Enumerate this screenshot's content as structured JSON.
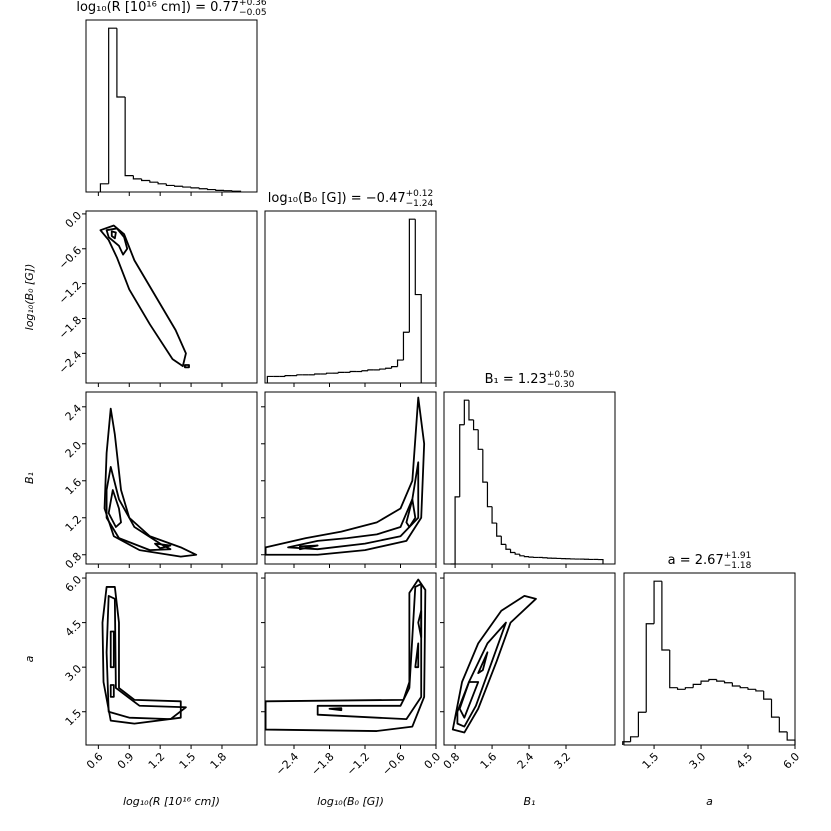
{
  "chart_data": {
    "type": "corner",
    "variables": [
      {
        "title": {
          "text": "log₁₀(R [10¹⁶ cm]) = 0.77",
          "upper": "+0.36",
          "lower": "−0.05"
        },
        "label": "log₁₀(R [10¹⁶ cm])",
        "xlim": [
          0.48,
          2.14
        ],
        "xticks": [
          0.6,
          0.9,
          1.2,
          1.5,
          1.8
        ],
        "hist_ylim": [
          0,
          105
        ],
        "bins": [
          0.62,
          0.7,
          0.78,
          0.86,
          0.94,
          1.02,
          1.1,
          1.18,
          1.26,
          1.34,
          1.42,
          1.5,
          1.58,
          1.66,
          1.74,
          1.82,
          1.9,
          1.98
        ],
        "counts": [
          5,
          100,
          58,
          10,
          8,
          7,
          6,
          5,
          4,
          3.5,
          3,
          2.5,
          2,
          1.5,
          1,
          0.8,
          0.5
        ]
      },
      {
        "title": {
          "text": "log₁₀(B₀ [G]) = −0.47",
          "upper": "+0.12",
          "lower": "−1.24"
        },
        "label": "log₁₀(B₀ [G])",
        "xlim": [
          -2.89,
          0.0
        ],
        "xticks": [
          {
            "value": -2.4,
            "label": "−2.4"
          },
          {
            "value": -1.8,
            "label": "−1.8"
          },
          {
            "value": -1.2,
            "label": "−1.2"
          },
          {
            "value": -0.6,
            "label": "−0.6"
          },
          {
            "value": 0,
            "label": "0.0"
          }
        ],
        "ylim": [
          -2.91,
          0.05
        ],
        "yticks": [
          {
            "value": 0,
            "label": "0.0"
          },
          {
            "value": -0.6,
            "label": "−0.6"
          },
          {
            "value": -1.2,
            "label": "−1.2"
          },
          {
            "value": -1.8,
            "label": "−1.8"
          },
          {
            "value": -2.4,
            "label": "−2.4"
          }
        ],
        "hist_ylim": [
          0,
          105
        ],
        "bins": [
          -2.85,
          -2.75,
          -2.65,
          -2.55,
          -2.45,
          -2.35,
          -2.25,
          -2.15,
          -2.05,
          -1.95,
          -1.85,
          -1.75,
          -1.65,
          -1.55,
          -1.45,
          -1.35,
          -1.25,
          -1.15,
          -1.05,
          -0.95,
          -0.85,
          -0.75,
          -0.65,
          -0.55,
          -0.45,
          -0.35,
          -0.25
        ],
        "counts": [
          4,
          4,
          4,
          4.5,
          4.5,
          5,
          5,
          5,
          5.5,
          5.5,
          6,
          6,
          6.5,
          6.5,
          7,
          7,
          7.5,
          8,
          8,
          8.5,
          9,
          10,
          14,
          31,
          100,
          54
        ],
        "contours": [
          [
            {
              "x": [
                0.62,
                0.75,
                0.85,
                0.95,
                1.15,
                1.35,
                1.45,
                1.42,
                1.32,
                1.1,
                0.9,
                0.78,
                0.7
              ],
              "y": [
                -0.28,
                -0.2,
                -0.35,
                -0.8,
                -1.4,
                -2.0,
                -2.4,
                -2.62,
                -2.5,
                -1.9,
                -1.3,
                -0.75,
                -0.45
              ]
            },
            {
              "x": [
                0.68,
                0.78,
                0.85,
                0.88,
                0.84,
                0.8,
                0.7
              ],
              "y": [
                -0.28,
                -0.25,
                -0.4,
                -0.6,
                -0.7,
                -0.55,
                -0.4
              ]
            },
            {
              "x": [
                0.73,
                0.77,
                0.76,
                0.73
              ],
              "y": [
                -0.3,
                -0.32,
                -0.42,
                -0.38
              ]
            },
            {
              "x": [
                1.44,
                1.48,
                1.48,
                1.44
              ],
              "y": [
                -2.6,
                -2.6,
                -2.64,
                -2.64
              ]
            }
          ]
        ]
      },
      {
        "title": {
          "text": "B₁ = 1.23",
          "upper": "+0.50",
          "lower": "−0.30"
        },
        "label": "B₁",
        "xlim": [
          0.56,
          4.26
        ],
        "xticks": [
          0.8,
          1.6,
          2.4,
          3.2
        ],
        "ylim": [
          0.7,
          2.56
        ],
        "yticks": [
          2.4,
          {
            "value": 2,
            "label": "2.0"
          },
          1.6,
          1.2,
          0.8
        ],
        "hist_ylim": [
          0,
          105
        ],
        "bins": [
          0.7,
          0.8,
          0.9,
          1.0,
          1.1,
          1.2,
          1.3,
          1.4,
          1.5,
          1.6,
          1.7,
          1.8,
          1.9,
          2.0,
          2.1,
          2.2,
          2.3,
          2.4,
          2.5,
          2.6,
          2.7,
          2.8,
          2.9,
          3.0,
          3.1,
          3.2,
          3.3,
          3.4,
          3.5,
          3.6,
          3.7,
          3.8,
          3.9,
          4.0
        ],
        "counts": [
          0,
          41,
          85,
          100,
          88,
          82,
          70,
          50,
          35,
          25,
          17,
          12,
          9,
          7,
          6,
          5,
          4.5,
          4.2,
          4,
          4,
          3.8,
          3.6,
          3.5,
          3.4,
          3.3,
          3.2,
          3.1,
          3,
          3,
          2.9,
          2.8,
          2.8,
          2.7
        ],
        "contours": [
          [
            {
              "x": [
                0.72,
                0.76,
                0.82,
                0.9,
                1.1,
                1.4,
                1.55,
                1.4,
                1.0,
                0.75,
                0.66,
                0.68
              ],
              "y": [
                2.38,
                2.1,
                1.5,
                1.2,
                1.0,
                0.88,
                0.8,
                0.78,
                0.85,
                1.0,
                1.3,
                1.9
              ]
            },
            {
              "x": [
                0.72,
                0.8,
                0.95,
                1.2,
                1.3,
                1.1,
                0.8,
                0.68,
                0.68
              ],
              "y": [
                1.75,
                1.4,
                1.1,
                0.92,
                0.86,
                0.85,
                0.98,
                1.2,
                1.5
              ]
            },
            {
              "x": [
                0.74,
                0.8,
                0.82,
                0.77,
                0.7
              ],
              "y": [
                1.5,
                1.3,
                1.15,
                1.1,
                1.25
              ]
            },
            {
              "x": [
                1.15,
                1.3,
                1.2
              ],
              "y": [
                0.92,
                0.9,
                0.87
              ]
            }
          ],
          [
            {
              "x": [
                -2.88,
                -2.2,
                -1.6,
                -1.0,
                -0.6,
                -0.4,
                -0.3,
                -0.2,
                -0.25,
                -0.5,
                -1.2,
                -2.0,
                -2.88
              ],
              "y": [
                0.88,
                0.98,
                1.05,
                1.15,
                1.3,
                1.6,
                2.5,
                2.0,
                1.2,
                0.95,
                0.85,
                0.8,
                0.8
              ]
            },
            {
              "x": [
                -2.5,
                -2.0,
                -1.5,
                -1.0,
                -0.6,
                -0.4,
                -0.3,
                -0.3,
                -0.6,
                -1.2,
                -2.0
              ],
              "y": [
                0.88,
                0.95,
                0.98,
                1.02,
                1.1,
                1.4,
                1.8,
                1.2,
                1.0,
                0.92,
                0.86
              ]
            },
            {
              "x": [
                -0.5,
                -0.4,
                -0.35,
                -0.45
              ],
              "y": [
                1.15,
                1.4,
                1.2,
                1.1
              ]
            },
            {
              "x": [
                -2.3,
                -2.0,
                -2.3
              ],
              "y": [
                0.89,
                0.9,
                0.86
              ]
            }
          ]
        ]
      },
      {
        "title": {
          "text": "a = 2.67",
          "upper": "+1.91",
          "lower": "−1.18"
        },
        "label": "a",
        "xlim": [
          0.54,
          6.0
        ],
        "xticks": [
          1.5,
          {
            "value": 3,
            "label": "3.0"
          },
          4.5,
          {
            "value": 6,
            "label": "6.0"
          }
        ],
        "ylim": [
          0.38,
          6.17
        ],
        "yticks": [
          {
            "value": 6,
            "label": "6.0"
          },
          4.5,
          {
            "value": 3,
            "label": "3.0"
          },
          1.5
        ],
        "hist_ylim": [
          0,
          105
        ],
        "bins": [
          0.5,
          0.75,
          1.0,
          1.25,
          1.5,
          1.75,
          2.0,
          2.25,
          2.5,
          2.75,
          3.0,
          3.25,
          3.5,
          3.75,
          4.0,
          4.25,
          4.5,
          4.75,
          5.0,
          5.25,
          5.5,
          5.75,
          6.0
        ],
        "counts": [
          2,
          5,
          20,
          74,
          100,
          58,
          35,
          34,
          35,
          37,
          39,
          40,
          39,
          38,
          36,
          35,
          34,
          33,
          28,
          17,
          8,
          3
        ],
        "contours": [
          [
            {
              "x": [
                0.68,
                0.76,
                0.8,
                0.8,
                0.95,
                1.4,
                1.4,
                0.95,
                0.72,
                0.65,
                0.64
              ],
              "y": [
                5.7,
                5.7,
                4.5,
                2.3,
                1.9,
                1.85,
                1.3,
                1.1,
                1.2,
                2.5,
                4.5
              ]
            },
            {
              "x": [
                0.7,
                0.76,
                0.77,
                1.0,
                1.45,
                1.3,
                0.9,
                0.7,
                0.68
              ],
              "y": [
                5.4,
                5.3,
                2.3,
                1.7,
                1.65,
                1.25,
                1.3,
                1.5,
                3.5
              ]
            },
            {
              "x": [
                0.72,
                0.75,
                0.75,
                0.72
              ],
              "y": [
                4.2,
                4.2,
                3.0,
                3.0
              ]
            },
            {
              "x": [
                0.72,
                0.75,
                0.75,
                0.72
              ],
              "y": [
                2.4,
                2.4,
                2.0,
                2.0
              ]
            }
          ],
          [
            {
              "x": [
                -2.88,
                -0.55,
                -0.45,
                -0.45,
                -0.3,
                -0.18,
                -0.2,
                -0.4,
                -1.0,
                -2.88
              ],
              "y": [
                1.85,
                1.9,
                2.5,
                5.5,
                5.95,
                5.6,
                2.0,
                1.0,
                0.85,
                0.9
              ]
            },
            {
              "x": [
                -2.0,
                -0.6,
                -0.45,
                -0.35,
                -0.25,
                -0.25,
                -0.5,
                -2.0
              ],
              "y": [
                1.7,
                1.7,
                2.3,
                5.7,
                5.8,
                2.0,
                1.25,
                1.4
              ]
            },
            {
              "x": [
                -0.3,
                -0.25,
                -0.25
              ],
              "y": [
                4.5,
                4.9,
                4.0
              ]
            },
            {
              "x": [
                -0.35,
                -0.3,
                -0.3
              ],
              "y": [
                3.0,
                3.8,
                3.0
              ]
            },
            {
              "x": [
                -1.8,
                -1.6,
                -1.6
              ],
              "y": [
                1.6,
                1.62,
                1.55
              ]
            }
          ],
          [
            {
              "x": [
                0.8,
                0.95,
                1.3,
                1.8,
                2.3,
                2.55,
                2.0,
                1.7,
                1.3,
                1.0,
                0.75
              ],
              "y": [
                1.3,
                2.5,
                3.8,
                4.9,
                5.4,
                5.3,
                4.5,
                3.2,
                1.6,
                0.8,
                0.9
              ]
            },
            {
              "x": [
                0.85,
                1.1,
                1.5,
                1.9,
                1.6,
                1.25,
                1.0,
                0.85
              ],
              "y": [
                1.5,
                2.5,
                3.8,
                4.5,
                3.2,
                1.7,
                1.0,
                1.1
              ]
            },
            {
              "x": [
                0.9,
                1.1,
                1.3,
                1.0
              ],
              "y": [
                1.6,
                2.5,
                2.5,
                1.3
              ]
            },
            {
              "x": [
                1.3,
                1.5,
                1.4
              ],
              "y": [
                2.8,
                3.5,
                2.9
              ]
            }
          ]
        ]
      }
    ]
  }
}
